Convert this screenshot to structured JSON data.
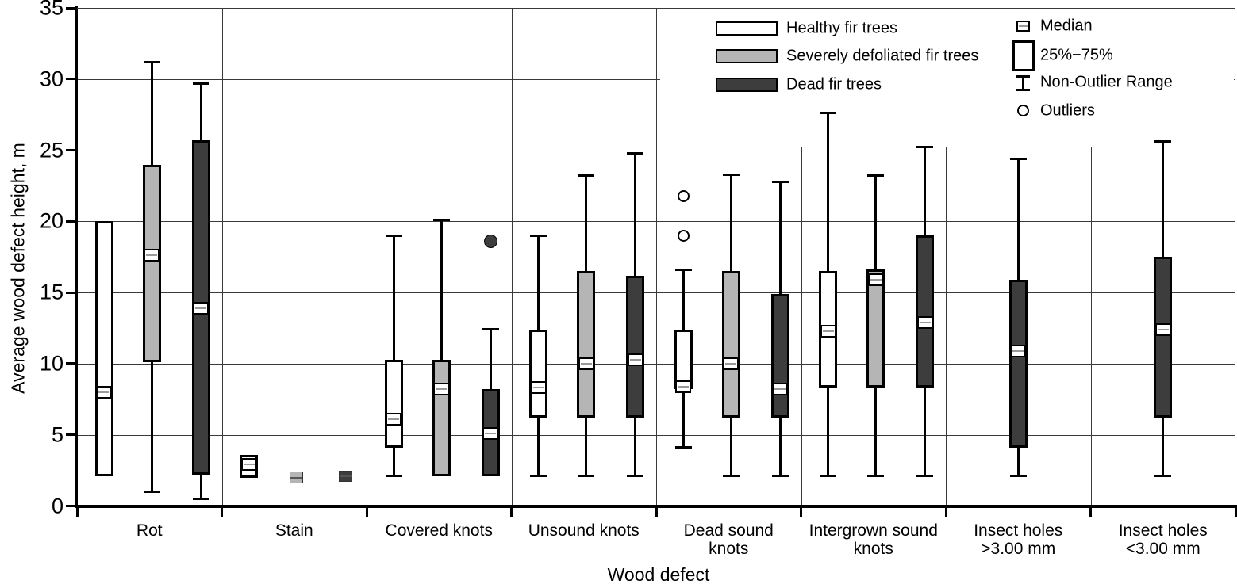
{
  "chart_data": {
    "type": "boxplot",
    "title": "",
    "xlabel": "Wood defect",
    "ylabel": "Average wood defect height, m",
    "ylim": [
      0,
      35
    ],
    "yticks": [
      0,
      5,
      10,
      15,
      20,
      25,
      30,
      35
    ],
    "grid": true,
    "legend_position": "top-right-inside",
    "categories": [
      "Rot",
      "Stain",
      "Covered knots",
      "Unsound knots",
      "Dead sound\nknots",
      "Intergrown sound\nknots",
      "Insect holes\n>3.00 mm",
      "Insect holes\n<3.00 mm"
    ],
    "series": [
      {
        "name": "Healthy fir trees",
        "fill": "#ffffff",
        "boxes": [
          {
            "cat": 0,
            "low": null,
            "q1": 2.1,
            "median": 8.0,
            "q3": 20.0,
            "high": null
          },
          {
            "cat": 1,
            "low": null,
            "q1": 2.0,
            "median": 2.9,
            "q3": 3.6,
            "high": null
          },
          {
            "cat": 2,
            "low": 2.1,
            "q1": 4.1,
            "median": 6.1,
            "q3": 10.3,
            "high": 19.0
          },
          {
            "cat": 3,
            "low": 2.1,
            "q1": 6.2,
            "median": 8.3,
            "q3": 12.4,
            "high": 19.0
          },
          {
            "cat": 4,
            "low": 4.1,
            "q1": 8.2,
            "median": 8.4,
            "q3": 12.4,
            "high": 16.6,
            "outliers_open": [
              19.0,
              21.8
            ]
          },
          {
            "cat": 5,
            "low": 2.1,
            "q1": 8.3,
            "median": 12.3,
            "q3": 16.5,
            "high": 27.6
          }
        ]
      },
      {
        "name": "Severely defoliated fir trees",
        "fill": "#b5b5b5",
        "boxes": [
          {
            "cat": 0,
            "low": 1.0,
            "q1": 10.1,
            "median": 17.6,
            "q3": 24.0,
            "high": 31.2
          },
          {
            "cat": 1,
            "low": null,
            "q1": 1.6,
            "median": 2.0,
            "q3": 2.4,
            "high": null
          },
          {
            "cat": 2,
            "low": null,
            "q1": 2.1,
            "median": 8.2,
            "q3": 10.3,
            "high": 20.1
          },
          {
            "cat": 3,
            "low": 2.1,
            "q1": 6.2,
            "median": 10.0,
            "q3": 16.5,
            "high": 23.2
          },
          {
            "cat": 4,
            "low": 2.1,
            "q1": 6.2,
            "median": 10.0,
            "q3": 16.5,
            "high": 23.3
          },
          {
            "cat": 5,
            "low": 2.1,
            "q1": 8.3,
            "median": 15.9,
            "q3": 16.6,
            "high": 23.2
          }
        ]
      },
      {
        "name": "Dead fir trees",
        "fill": "#3d3d3d",
        "boxes": [
          {
            "cat": 0,
            "low": 0.5,
            "q1": 2.2,
            "median": 13.9,
            "q3": 25.7,
            "high": 29.7
          },
          {
            "cat": 1,
            "low": null,
            "q1": 1.7,
            "median": 2.1,
            "q3": 2.5,
            "high": null
          },
          {
            "cat": 2,
            "low": null,
            "q1": 2.1,
            "median": 5.1,
            "q3": 8.2,
            "high": 12.4,
            "outliers_filled": [
              18.6
            ]
          },
          {
            "cat": 3,
            "low": 2.1,
            "q1": 6.2,
            "median": 10.3,
            "q3": 16.2,
            "high": 24.8
          },
          {
            "cat": 4,
            "low": 2.1,
            "q1": 6.2,
            "median": 8.2,
            "q3": 14.9,
            "high": 22.8
          },
          {
            "cat": 5,
            "low": 2.1,
            "q1": 8.3,
            "median": 12.9,
            "q3": 19.0,
            "high": 25.2
          },
          {
            "cat": 6,
            "low": 2.1,
            "q1": 4.1,
            "median": 10.9,
            "q3": 15.9,
            "high": 24.4
          },
          {
            "cat": 7,
            "low": 2.1,
            "q1": 6.2,
            "median": 12.4,
            "q3": 17.5,
            "high": 25.6
          }
        ]
      }
    ],
    "legend_stats": [
      "Median",
      "25%−75%",
      "Non-Outlier Range",
      "Outliers"
    ]
  }
}
